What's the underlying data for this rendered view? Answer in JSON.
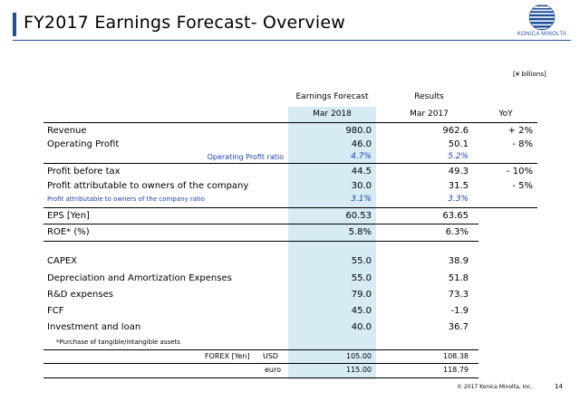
{
  "header": {
    "title": "FY2017 Earnings Forecast- Overview",
    "logo_text": "KONICA MINOLTA",
    "accent_color": "#1f4e9a"
  },
  "unit": "[¥ billions]",
  "columns": {
    "forecast_group": "Earnings Forecast",
    "results_group": "Results",
    "forecast_period": "Mar 2018",
    "results_period": "Mar 2017",
    "yoy": "YoY"
  },
  "rows": {
    "revenue": {
      "label": "Revenue",
      "forecast": "980.0",
      "result": "962.6",
      "yoy": "+ 2%"
    },
    "op": {
      "label": "Operating Profit",
      "forecast": "46.0",
      "result": "50.1",
      "yoy": "- 8%"
    },
    "op_ratio": {
      "label": "Operating Profit ratio",
      "forecast": "4.7%",
      "result": "5.2%"
    },
    "pbt": {
      "label": "Profit before tax",
      "forecast": "44.5",
      "result": "49.3",
      "yoy": "- 10%"
    },
    "pao": {
      "label": "Profit attributable to owners of the company",
      "forecast": "30.0",
      "result": "31.5",
      "yoy": "- 5%"
    },
    "pao_ratio": {
      "label": "Profit attributable to owners of the company ratio",
      "forecast": "3.1%",
      "result": "3.3%"
    },
    "eps": {
      "label": "EPS [Yen]",
      "forecast": "60.53",
      "result": "63.65"
    },
    "roe": {
      "label": "ROE* (%)",
      "forecast": "5.8%",
      "result": "6.3%"
    },
    "capex": {
      "label": "CAPEX",
      "forecast": "55.0",
      "result": "38.9"
    },
    "da": {
      "label": "Depreciation and Amortization Expenses",
      "forecast": "55.0",
      "result": "51.8"
    },
    "rd": {
      "label": "R&D expenses",
      "forecast": "79.0",
      "result": "73.3"
    },
    "fcf": {
      "label": "FCF",
      "forecast": "45.0",
      "result": "-1.9"
    },
    "inv": {
      "label": "Investment and loan",
      "forecast": "40.0",
      "result": "36.7"
    }
  },
  "note": "*Purchase of tangible/intangible assets",
  "forex": {
    "label": "FOREX [Yen]",
    "usd_label": "USD",
    "usd_forecast": "105.00",
    "usd_result": "108.38",
    "euro_label": "euro",
    "euro_forecast": "115.00",
    "euro_result": "118.79"
  },
  "footer": {
    "copyright": "© 2017 Konica Minolta, Inc.",
    "page": "14"
  }
}
